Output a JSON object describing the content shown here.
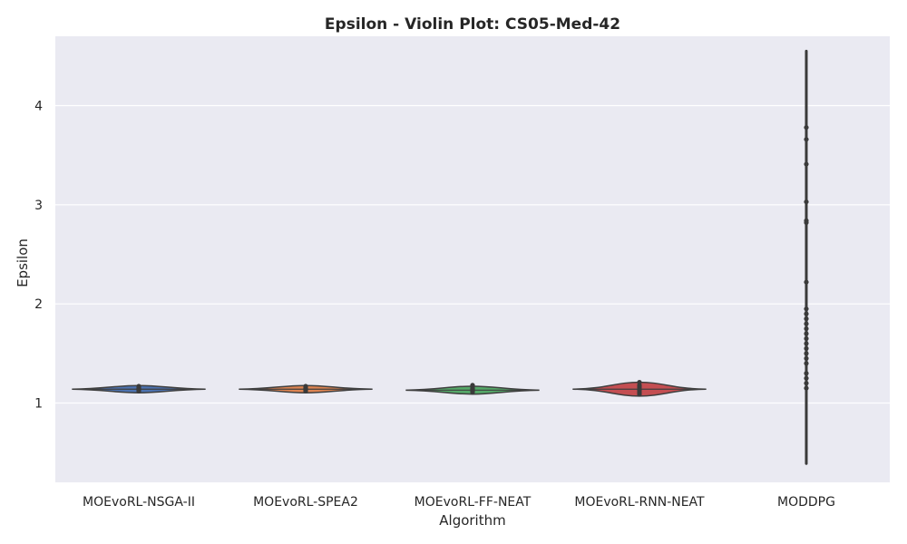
{
  "chart_data": {
    "type": "violin",
    "title": "Epsilon - Violin Plot: CS05-Med-42",
    "xlabel": "Algorithm",
    "ylabel": "Epsilon",
    "ylim": [
      0.2,
      4.7
    ],
    "yticks": [
      1,
      2,
      3,
      4
    ],
    "grid": true,
    "legend": "none",
    "categories": [
      "MOEvoRL-NSGA-II",
      "MOEvoRL-SPEA2",
      "MOEvoRL-FF-NEAT",
      "MOEvoRL-RNN-NEAT",
      "MODDPG"
    ],
    "series": [
      {
        "color": "#4c72b0",
        "median": 1.14,
        "points": [
          1.12,
          1.13,
          1.14,
          1.14,
          1.15,
          1.16,
          1.17
        ],
        "range": [
          1.11,
          1.18
        ]
      },
      {
        "color": "#dd8452",
        "median": 1.14,
        "points": [
          1.12,
          1.13,
          1.14,
          1.14,
          1.15,
          1.16,
          1.17
        ],
        "range": [
          1.11,
          1.17
        ]
      },
      {
        "color": "#55a868",
        "median": 1.13,
        "points": [
          1.11,
          1.12,
          1.13,
          1.14,
          1.15,
          1.17,
          1.18
        ],
        "range": [
          1.1,
          1.18
        ]
      },
      {
        "color": "#c44e52",
        "median": 1.14,
        "points": [
          1.09,
          1.11,
          1.13,
          1.14,
          1.16,
          1.18,
          1.21
        ],
        "range": [
          1.08,
          1.22
        ]
      },
      {
        "color": "#8172b3",
        "median": 1.55,
        "points": [
          1.15,
          1.2,
          1.25,
          1.3,
          1.4,
          1.45,
          1.5,
          1.55,
          1.6,
          1.65,
          1.7,
          1.75,
          1.8,
          1.85,
          1.9,
          1.95,
          2.22,
          2.82,
          2.84,
          3.03,
          3.41,
          3.66,
          3.78
        ],
        "range": [
          0.39,
          4.55
        ]
      }
    ]
  }
}
